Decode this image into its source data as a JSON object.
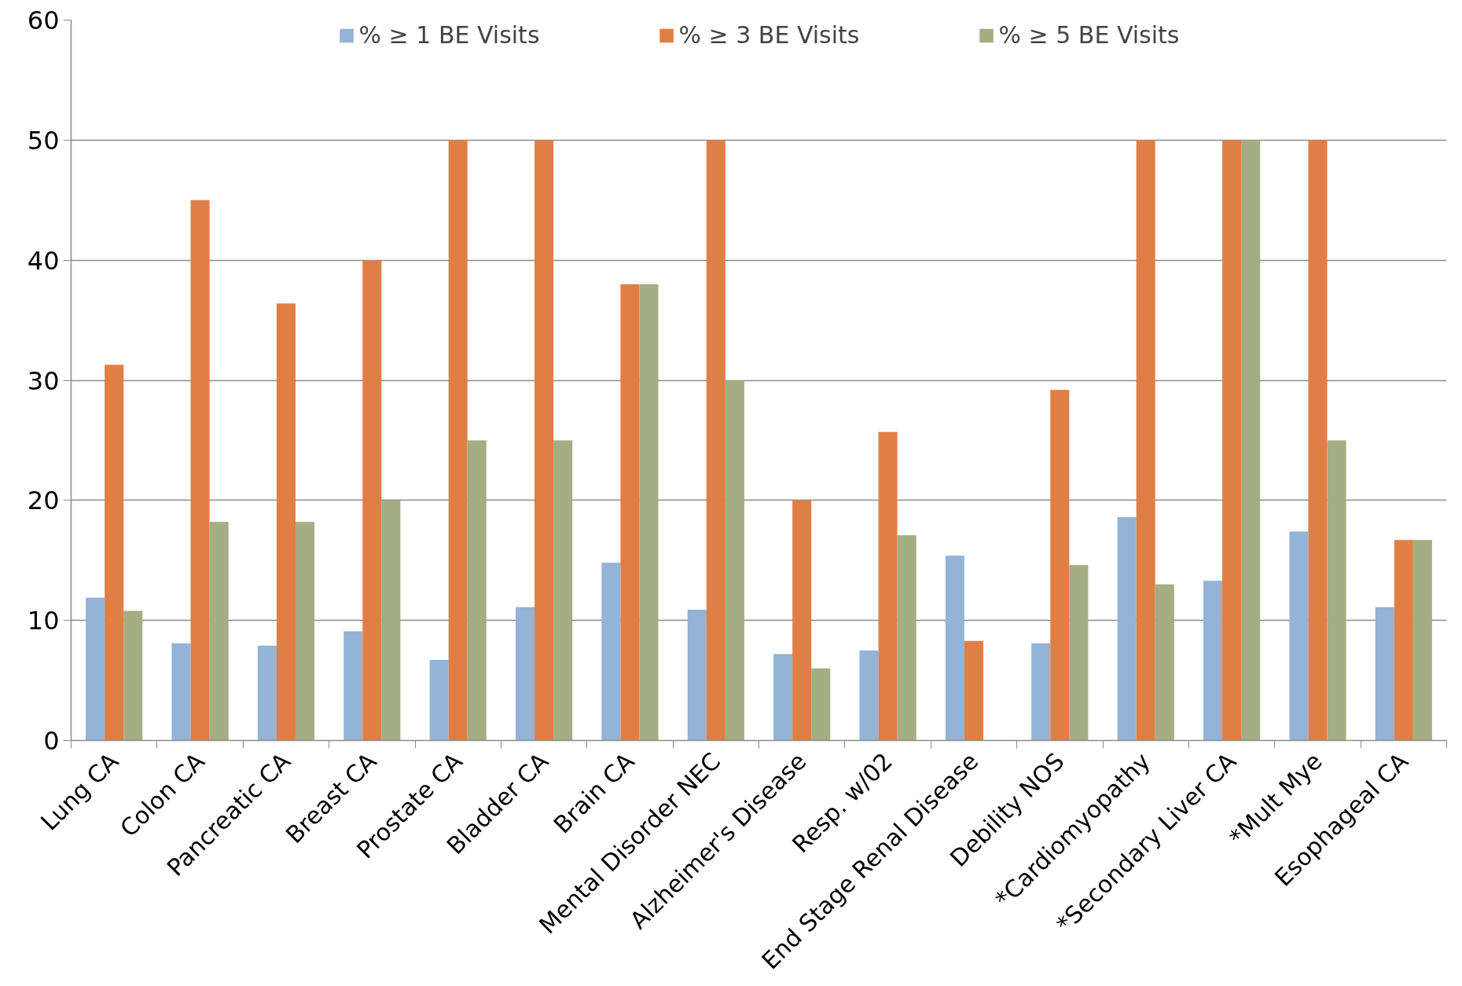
{
  "chart_data": {
    "type": "bar",
    "categories": [
      "Lung CA",
      "Colon CA",
      "Pancreatic CA",
      "Breast CA",
      "Prostate CA",
      "Bladder CA",
      "Brain CA",
      "Mental Disorder NEC",
      "Alzheimer's Disease",
      "Resp. w/02",
      "End Stage Renal Disease",
      "Debility NOS",
      "*Cardiomyopathy",
      "*Secondary Liver CA",
      "*Mult Mye",
      "Esophageal CA"
    ],
    "series": [
      {
        "name": "% ≥ 1 BE Visits",
        "color": "#93b3d7",
        "values": [
          11.9,
          8.1,
          7.9,
          9.1,
          6.7,
          11.1,
          14.8,
          10.9,
          7.2,
          7.5,
          15.4,
          8.1,
          18.6,
          13.3,
          17.4,
          11.1
        ]
      },
      {
        "name": "% ≥ 3 BE Visits",
        "color": "#e07f45",
        "values": [
          31.3,
          45,
          36.4,
          40,
          50,
          50,
          38,
          50,
          20,
          25.7,
          8.3,
          29.2,
          50,
          50,
          50,
          16.7
        ]
      },
      {
        "name": "% ≥ 5 BE Visits",
        "color": "#a5ad82",
        "values": [
          10.8,
          18.2,
          18.2,
          20,
          25,
          25,
          38,
          30,
          6,
          17.1,
          0,
          14.6,
          13,
          50,
          25,
          16.7
        ]
      }
    ],
    "ylim": [
      0,
      60
    ],
    "yticks": [
      0,
      10,
      20,
      30,
      40,
      50,
      60
    ],
    "grid": "y",
    "legend": "top"
  }
}
